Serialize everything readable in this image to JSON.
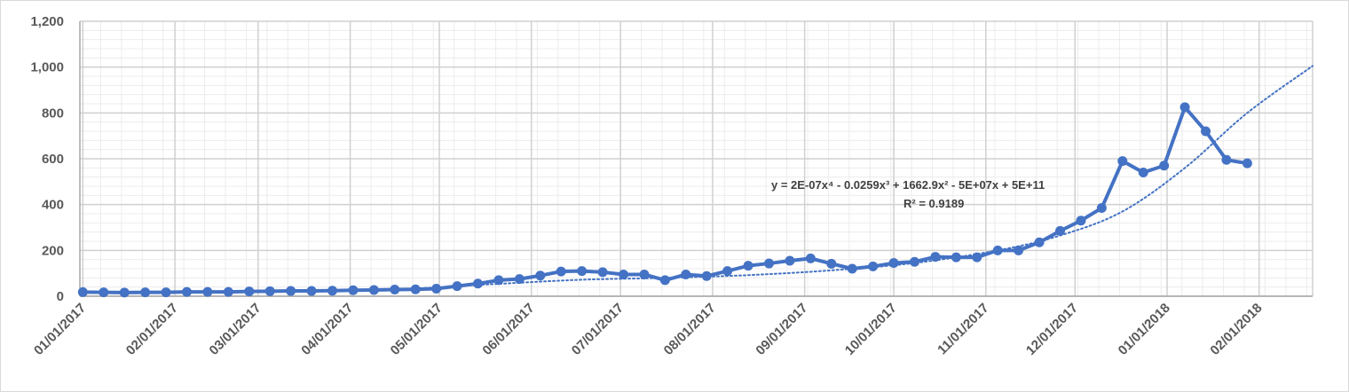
{
  "chart_data": {
    "type": "line",
    "title": "",
    "xlabel": "",
    "ylabel": "",
    "ylim": [
      0,
      1200
    ],
    "yticks": [
      "0",
      "200",
      "400",
      "600",
      "800",
      "1,000",
      "1,200"
    ],
    "ytick_values": [
      0,
      200,
      400,
      600,
      800,
      1000,
      1200
    ],
    "xlim": [
      "2016-12-31",
      "2018-02-19"
    ],
    "xticks": [
      "01/01/2017",
      "02/01/2017",
      "03/01/2017",
      "04/01/2017",
      "05/01/2017",
      "06/01/2017",
      "07/01/2017",
      "08/01/2017",
      "09/01/2017",
      "10/01/2017",
      "11/01/2017",
      "12/01/2017",
      "01/01/2018",
      "02/01/2018"
    ],
    "xtick_dates": [
      "2017-01-01",
      "2017-02-01",
      "2017-03-01",
      "2017-04-01",
      "2017-05-01",
      "2017-06-01",
      "2017-07-01",
      "2017-08-01",
      "2017-09-01",
      "2017-10-01",
      "2017-11-01",
      "2017-12-01",
      "2018-01-01",
      "2018-02-01"
    ],
    "grid": true,
    "legend": "none",
    "line_color": "#4472c4",
    "series": [
      {
        "x": [
          "2017-01-01",
          "2017-01-08",
          "2017-01-15",
          "2017-01-22",
          "2017-01-29",
          "2017-02-05",
          "2017-02-12",
          "2017-02-19",
          "2017-02-26",
          "2017-03-05",
          "2017-03-12",
          "2017-03-19",
          "2017-03-26",
          "2017-04-02",
          "2017-04-09",
          "2017-04-16",
          "2017-04-23",
          "2017-04-30",
          "2017-05-07",
          "2017-05-14",
          "2017-05-21",
          "2017-05-28",
          "2017-06-04",
          "2017-06-11",
          "2017-06-18",
          "2017-06-25",
          "2017-07-02",
          "2017-07-09",
          "2017-07-16",
          "2017-07-23",
          "2017-07-30",
          "2017-08-06",
          "2017-08-13",
          "2017-08-20",
          "2017-08-27",
          "2017-09-03",
          "2017-09-10",
          "2017-09-17",
          "2017-09-24",
          "2017-10-01",
          "2017-10-08",
          "2017-10-15",
          "2017-10-22",
          "2017-10-29",
          "2017-11-05",
          "2017-11-12",
          "2017-11-19",
          "2017-11-26",
          "2017-12-03",
          "2017-12-10",
          "2017-12-17",
          "2017-12-24",
          "2017-12-31",
          "2018-01-07",
          "2018-01-14",
          "2018-01-21",
          "2018-01-28"
        ],
        "values": [
          18,
          17,
          16,
          17,
          17,
          19,
          19,
          19,
          21,
          22,
          23,
          23,
          24,
          26,
          27,
          29,
          30,
          33,
          44,
          55,
          70,
          75,
          90,
          108,
          110,
          105,
          95,
          95,
          70,
          95,
          88,
          110,
          133,
          143,
          155,
          165,
          142,
          120,
          130,
          145,
          150,
          172,
          170,
          170,
          200,
          200,
          235,
          285,
          330,
          385,
          590,
          540,
          570,
          825,
          720,
          595,
          580
        ]
      }
    ],
    "trendline": {
      "type": "polynomial",
      "order": 4,
      "style": "dotted",
      "extends_to": "2018-02-19",
      "x": [
        "2017-01-01",
        "2017-01-29",
        "2017-02-26",
        "2017-03-26",
        "2017-04-23",
        "2017-05-21",
        "2017-06-18",
        "2017-07-16",
        "2017-08-13",
        "2017-09-10",
        "2017-10-08",
        "2017-11-05",
        "2017-11-26",
        "2017-12-17",
        "2018-01-07",
        "2018-01-28",
        "2018-02-19"
      ],
      "values": [
        15,
        18,
        20,
        24,
        34,
        54,
        72,
        80,
        92,
        113,
        145,
        200,
        265,
        370,
        560,
        800,
        1005
      ],
      "equation": "y = 2E-07x⁴ - 0.0259x³ + 1662.9x² - 5E+07x + 5E+11",
      "r2": "R² = 0.9189"
    }
  }
}
